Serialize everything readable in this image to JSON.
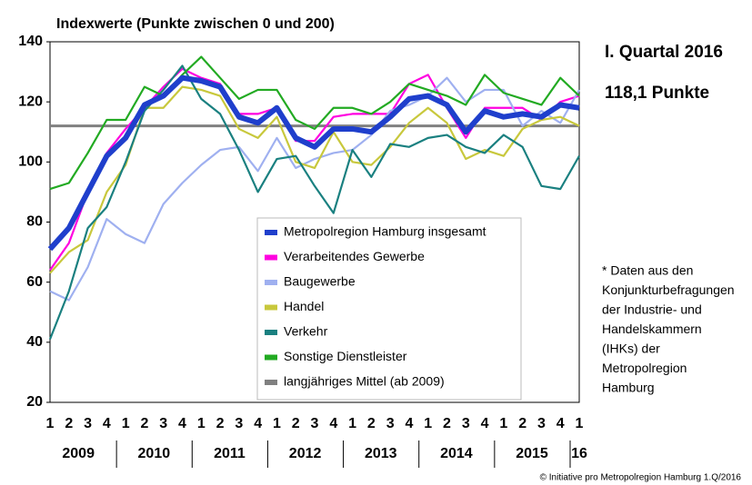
{
  "chart_data": {
    "type": "line",
    "title": "Indexwerte (Punkte zwischen 0 und 200)",
    "headline": "I. Quartal 2016",
    "headline_value": "118,1 Punkte",
    "note": [
      "* Daten aus den",
      "Konjunkturbefragungen",
      "der Industrie- und",
      "Handelskammern",
      "(IHKs) der",
      "Metropolregion",
      "Hamburg"
    ],
    "source": "© Initiative pro Metropolregion Hamburg 1.Q/2016",
    "categories": [
      "1",
      "2",
      "3",
      "4",
      "1",
      "2",
      "3",
      "4",
      "1",
      "2",
      "3",
      "4",
      "1",
      "2",
      "3",
      "4",
      "1",
      "2",
      "3",
      "4",
      "1",
      "2",
      "3",
      "4",
      "1",
      "2",
      "3",
      "4",
      "1"
    ],
    "years": [
      "2009",
      "2010",
      "2011",
      "2012",
      "2013",
      "2014",
      "2015",
      "16"
    ],
    "ylim": [
      20,
      140
    ],
    "yticks": [
      20,
      40,
      60,
      80,
      100,
      120,
      140
    ],
    "series": [
      {
        "name": "Metropolregion Hamburg insgesamt",
        "color": "#1f3fcc",
        "width": 6,
        "values": [
          71,
          78,
          90,
          102,
          108,
          119,
          122,
          128,
          127,
          125,
          115,
          113,
          118,
          108,
          105,
          111,
          111,
          110,
          115,
          121,
          122,
          119,
          110,
          117,
          115,
          116,
          115,
          119,
          118
        ]
      },
      {
        "name": "Verarbeitendes Gewerbe",
        "color": "#ff00e0",
        "width": 2.2,
        "values": [
          64,
          73,
          90,
          103,
          111,
          118,
          125,
          131,
          128,
          126,
          116,
          116,
          118,
          107,
          107,
          115,
          116,
          116,
          116,
          126,
          129,
          118,
          108,
          118,
          118,
          118,
          114,
          120,
          122
        ]
      },
      {
        "name": "Baugewerbe",
        "color": "#9fb0f0",
        "width": 2.2,
        "values": [
          57,
          54,
          65,
          81,
          76,
          73,
          86,
          93,
          99,
          104,
          105,
          97,
          108,
          98,
          101,
          103,
          104,
          109,
          117,
          119,
          122,
          128,
          120,
          124,
          124,
          112,
          117,
          113,
          124
        ]
      },
      {
        "name": "Handel",
        "color": "#c8c83c",
        "width": 2.2,
        "values": [
          63,
          70,
          74,
          90,
          99,
          118,
          118,
          125,
          124,
          122,
          111,
          108,
          115,
          100,
          98,
          110,
          100,
          99,
          105,
          113,
          118,
          113,
          101,
          104,
          102,
          111,
          114,
          115,
          112
        ]
      },
      {
        "name": "Verkehr",
        "color": "#1a8080",
        "width": 2.2,
        "values": [
          41,
          57,
          78,
          85,
          100,
          117,
          124,
          132,
          121,
          116,
          104,
          90,
          101,
          102,
          92,
          83,
          104,
          95,
          106,
          105,
          108,
          109,
          105,
          103,
          109,
          105,
          92,
          91,
          102
        ]
      },
      {
        "name": "Sonstige Dienstleister",
        "color": "#22aa22",
        "width": 2.2,
        "values": [
          91,
          93,
          103,
          114,
          114,
          125,
          122,
          129,
          135,
          128,
          121,
          124,
          124,
          114,
          111,
          118,
          118,
          116,
          120,
          126,
          124,
          122,
          119,
          129,
          123,
          121,
          119,
          128,
          122
        ]
      }
    ],
    "mean": {
      "name": "langjähriges Mittel (ab 2009)",
      "color": "#808080",
      "value": 112
    }
  }
}
